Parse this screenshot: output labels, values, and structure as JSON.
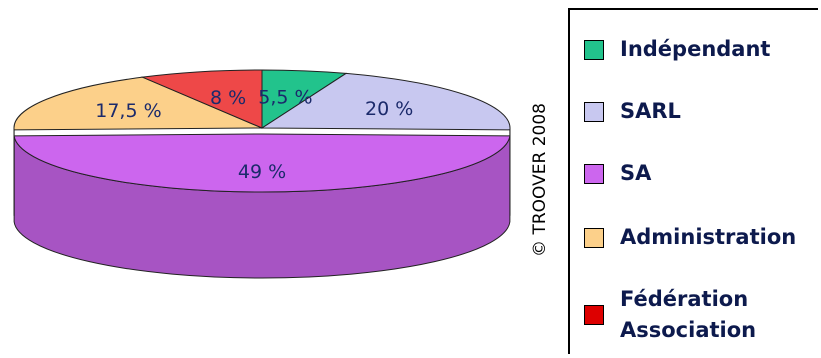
{
  "chart_data": {
    "type": "pie",
    "style": "3d-exploded",
    "slices": [
      {
        "name": "Indépendant",
        "value": 5.5,
        "label": "5,5 %",
        "color": "#22c38c"
      },
      {
        "name": "SARL",
        "value": 20,
        "label": "20 %",
        "color": "#c8c8f0"
      },
      {
        "name": "SA",
        "value": 49,
        "label": "49 %",
        "color": "#cc66ee"
      },
      {
        "name": "Administration",
        "value": 17.5,
        "label": "17,5 %",
        "color": "#fcd08a"
      },
      {
        "name": "Fédération Association",
        "value": 8,
        "label": "8 %",
        "color": "#ee4848"
      }
    ],
    "legend_position": "right"
  },
  "legend": {
    "items": [
      {
        "label": "Indépendant",
        "color": "#22c38c"
      },
      {
        "label": "SARL",
        "color": "#c8c8f0"
      },
      {
        "label": "SA",
        "color": "#cc66ee"
      },
      {
        "label": "Administration",
        "color": "#fcd08a"
      },
      {
        "label": "Fédération\nAssociation",
        "color": "#dd0000"
      }
    ]
  },
  "copyright": "© TROOVER 2008",
  "colors": {
    "label_text": "#1b2a6b",
    "legend_text": "#0d1a4d"
  }
}
